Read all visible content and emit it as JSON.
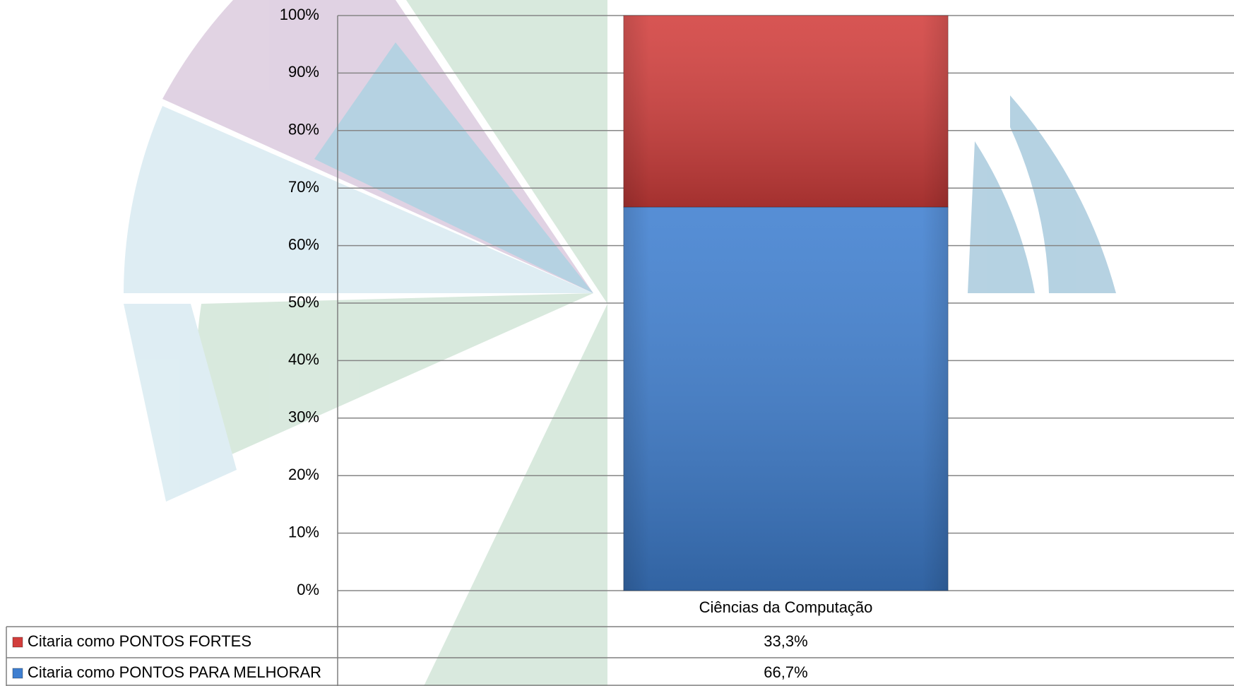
{
  "chart_data": {
    "type": "bar",
    "stacked": true,
    "categories": [
      "Ciências da Computação"
    ],
    "series": [
      {
        "name": "Citaria como PONTOS FORTES",
        "color": "#d23e3c",
        "values": [
          33.3
        ],
        "value_labels": [
          "33,3%"
        ]
      },
      {
        "name": "Citaria como PONTOS PARA MELHORAR",
        "color": "#3f7fd0",
        "values": [
          66.7
        ],
        "value_labels": [
          "66,7%"
        ]
      }
    ],
    "ylim": [
      0,
      100
    ],
    "yticks": [
      {
        "value": 0,
        "label": "0%"
      },
      {
        "value": 10,
        "label": "10%"
      },
      {
        "value": 20,
        "label": "20%"
      },
      {
        "value": 30,
        "label": "30%"
      },
      {
        "value": 40,
        "label": "40%"
      },
      {
        "value": 50,
        "label": "50%"
      },
      {
        "value": 60,
        "label": "60%"
      },
      {
        "value": 70,
        "label": "70%"
      },
      {
        "value": 80,
        "label": "80%"
      },
      {
        "value": 90,
        "label": "90%"
      },
      {
        "value": 100,
        "label": "100%"
      }
    ],
    "grid": true
  }
}
